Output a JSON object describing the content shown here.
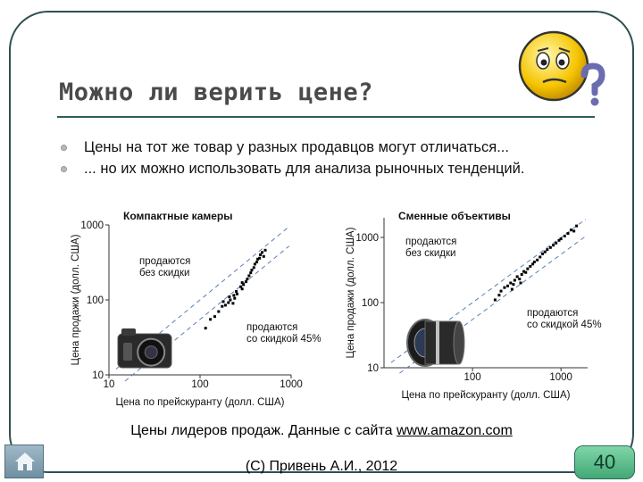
{
  "slide": {
    "title": "Можно ли верить цене?",
    "bullets": [
      "Цены на тот же товар у разных продавцов могут отличаться...",
      "... но их можно использовать для анализа рыночных тенденций."
    ],
    "caption_text": "Цены лидеров продаж. Данные с сайта ",
    "caption_link": "www.amazon.com",
    "footer": "(С) Привень А.И., 2012",
    "page_number": "40"
  },
  "icons": {
    "smiley": "confused-smiley-icon",
    "home": "home-icon",
    "camera": "compact-camera-photo",
    "lens": "camera-lens-photo"
  },
  "colors": {
    "frame": "#2f4f4f",
    "title": "#4a4a4a",
    "page_badge": "#43a875",
    "points": "#000000",
    "guide_lines": "#5a7fb5"
  },
  "chart_data": [
    {
      "type": "scatter",
      "title": "Компактные камеры",
      "xlabel": "Цена по прейскуранту (долл. США)",
      "ylabel": "Цена продажи (долл. США)",
      "x_scale": "log",
      "y_scale": "log",
      "xlim": [
        10,
        1000
      ],
      "ylim": [
        10,
        1000
      ],
      "x_ticks": [
        "10",
        "100",
        "1000"
      ],
      "y_ticks": [
        "10",
        "100",
        "1000"
      ],
      "guide_lines": [
        {
          "label": "продаются без скидки",
          "factor": 1.0
        },
        {
          "label": "продаются со скидкой 45%",
          "factor": 0.55
        }
      ],
      "points": [
        [
          115,
          42
        ],
        [
          130,
          55
        ],
        [
          145,
          60
        ],
        [
          160,
          70
        ],
        [
          175,
          82
        ],
        [
          180,
          95
        ],
        [
          190,
          85
        ],
        [
          205,
          92
        ],
        [
          210,
          110
        ],
        [
          215,
          100
        ],
        [
          230,
          90
        ],
        [
          235,
          115
        ],
        [
          250,
          130
        ],
        [
          255,
          120
        ],
        [
          280,
          150
        ],
        [
          290,
          170
        ],
        [
          300,
          160
        ],
        [
          320,
          175
        ],
        [
          330,
          190
        ],
        [
          345,
          210
        ],
        [
          360,
          230
        ],
        [
          370,
          250
        ],
        [
          390,
          270
        ],
        [
          400,
          300
        ],
        [
          420,
          320
        ],
        [
          430,
          350
        ],
        [
          450,
          360
        ],
        [
          460,
          400
        ],
        [
          480,
          430
        ],
        [
          500,
          380
        ],
        [
          520,
          460
        ],
        [
          290,
          140
        ],
        [
          240,
          105
        ]
      ]
    },
    {
      "type": "scatter",
      "title": "Сменные объективы",
      "xlabel": "Цена по прейскуранту (долл. США)",
      "ylabel": "Цена продажи (долл. США)",
      "x_scale": "log",
      "y_scale": "log",
      "xlim": [
        10,
        2000
      ],
      "ylim": [
        10,
        2000
      ],
      "x_ticks": [
        "100",
        "1000"
      ],
      "y_ticks": [
        "10",
        "100",
        "1000"
      ],
      "guide_lines": [
        {
          "label": "продаются без скидки",
          "factor": 1.0
        },
        {
          "label": "продаются со скидкой 45%",
          "factor": 0.55
        }
      ],
      "points": [
        [
          180,
          110
        ],
        [
          200,
          130
        ],
        [
          210,
          150
        ],
        [
          230,
          170
        ],
        [
          250,
          180
        ],
        [
          270,
          200
        ],
        [
          290,
          190
        ],
        [
          300,
          220
        ],
        [
          320,
          250
        ],
        [
          340,
          230
        ],
        [
          360,
          270
        ],
        [
          380,
          300
        ],
        [
          400,
          290
        ],
        [
          420,
          330
        ],
        [
          450,
          360
        ],
        [
          480,
          390
        ],
        [
          500,
          420
        ],
        [
          540,
          450
        ],
        [
          580,
          500
        ],
        [
          620,
          560
        ],
        [
          660,
          600
        ],
        [
          700,
          650
        ],
        [
          760,
          700
        ],
        [
          820,
          760
        ],
        [
          880,
          820
        ],
        [
          950,
          900
        ],
        [
          1000,
          950
        ],
        [
          1100,
          1050
        ],
        [
          1200,
          1150
        ],
        [
          1300,
          1300
        ],
        [
          1400,
          1250
        ],
        [
          1500,
          1500
        ],
        [
          280,
          160
        ],
        [
          350,
          200
        ]
      ]
    }
  ]
}
